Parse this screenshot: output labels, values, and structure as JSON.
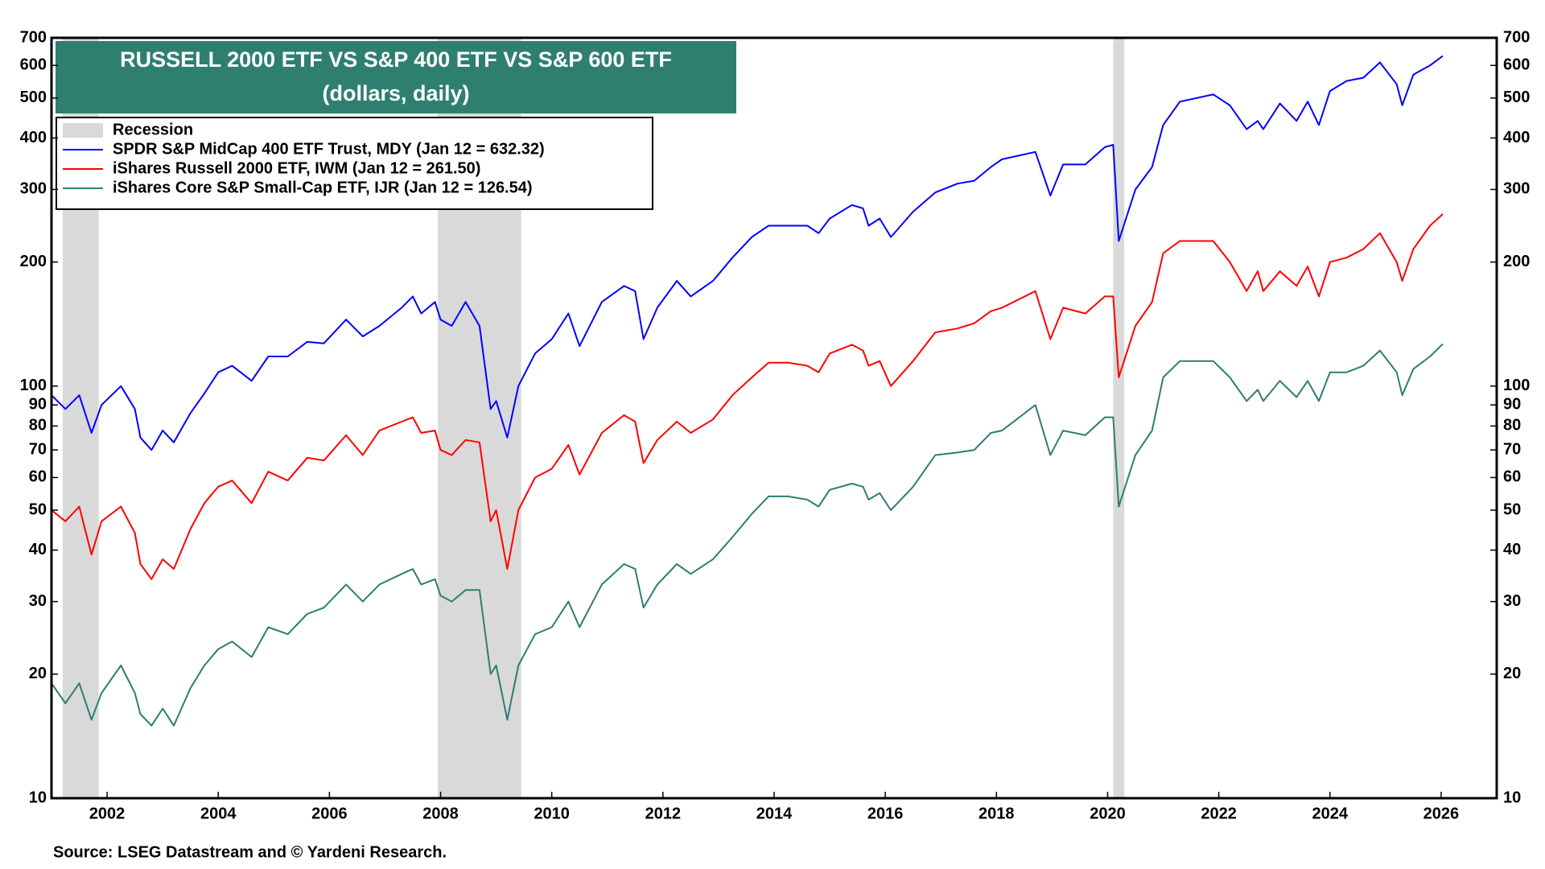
{
  "chart_data": {
    "type": "line",
    "title": "RUSSELL 2000 ETF VS S&P 400 ETF VS S&P 600 ETF",
    "subtitle": "(dollars, daily)",
    "source": "Source: LSEG Datastream and © Yardeni Research.",
    "log_scale": true,
    "grid": false,
    "xlim": [
      2001,
      2027
    ],
    "xticks": [
      2002,
      2004,
      2006,
      2008,
      2010,
      2012,
      2014,
      2016,
      2018,
      2020,
      2022,
      2024,
      2026
    ],
    "ylim": [
      10,
      700
    ],
    "yticks": [
      10,
      20,
      30,
      40,
      50,
      60,
      70,
      80,
      90,
      100,
      200,
      300,
      400,
      500,
      600,
      700
    ],
    "recession": {
      "name": "Recession",
      "color": "#d9d9d9",
      "periods": [
        [
          2001.2,
          2001.85
        ],
        [
          2007.95,
          2009.45
        ],
        [
          2020.1,
          2020.3
        ]
      ]
    },
    "x": [
      2001.0,
      2001.25,
      2001.5,
      2001.72,
      2001.9,
      2002.25,
      2002.5,
      2002.6,
      2002.8,
      2003.0,
      2003.2,
      2003.5,
      2003.75,
      2004.0,
      2004.25,
      2004.6,
      2004.9,
      2005.25,
      2005.6,
      2005.9,
      2006.3,
      2006.6,
      2006.9,
      2007.3,
      2007.5,
      2007.65,
      2007.9,
      2008.0,
      2008.2,
      2008.45,
      2008.7,
      2008.9,
      2009.0,
      2009.2,
      2009.4,
      2009.7,
      2010.0,
      2010.3,
      2010.5,
      2010.9,
      2011.3,
      2011.5,
      2011.65,
      2011.9,
      2012.25,
      2012.5,
      2012.9,
      2013.25,
      2013.6,
      2013.9,
      2014.25,
      2014.6,
      2014.8,
      2015.0,
      2015.4,
      2015.6,
      2015.7,
      2015.9,
      2016.1,
      2016.5,
      2016.9,
      2017.3,
      2017.6,
      2017.9,
      2018.1,
      2018.7,
      2018.97,
      2019.2,
      2019.6,
      2019.95,
      2020.1,
      2020.2,
      2020.5,
      2020.8,
      2021.0,
      2021.3,
      2021.9,
      2022.2,
      2022.5,
      2022.7,
      2022.8,
      2023.1,
      2023.4,
      2023.6,
      2023.8,
      2024.0,
      2024.3,
      2024.6,
      2024.9,
      2025.2,
      2025.3,
      2025.5,
      2025.8,
      2026.03
    ],
    "series": [
      {
        "name": "SPDR S&P MidCap 400 ETF Trust, MDY (Jan 12 = 632.32)",
        "color": "#0000ff",
        "values": [
          95,
          88,
          95,
          77,
          90,
          100,
          88,
          75,
          70,
          78,
          73,
          86,
          96,
          108,
          112,
          103,
          118,
          118,
          128,
          127,
          145,
          132,
          140,
          155,
          165,
          150,
          160,
          145,
          140,
          160,
          140,
          88,
          92,
          75,
          100,
          120,
          130,
          150,
          125,
          160,
          175,
          170,
          130,
          155,
          180,
          165,
          180,
          205,
          230,
          245,
          245,
          245,
          235,
          255,
          275,
          270,
          245,
          255,
          230,
          265,
          295,
          310,
          315,
          340,
          355,
          370,
          290,
          345,
          345,
          380,
          385,
          225,
          300,
          340,
          430,
          490,
          510,
          480,
          420,
          440,
          420,
          485,
          440,
          490,
          430,
          520,
          550,
          560,
          610,
          540,
          480,
          570,
          600,
          632.32
        ]
      },
      {
        "name": "iShares Russell 2000 ETF, IWM (Jan 12 = 261.50)",
        "color": "#ff0000",
        "values": [
          50,
          47,
          51,
          39,
          47,
          51,
          44,
          37,
          34,
          38,
          36,
          45,
          52,
          57,
          59,
          52,
          62,
          59,
          67,
          66,
          76,
          68,
          78,
          82,
          84,
          77,
          78,
          70,
          68,
          74,
          73,
          47,
          50,
          36,
          50,
          60,
          63,
          72,
          61,
          77,
          85,
          82,
          65,
          74,
          82,
          77,
          83,
          95,
          105,
          114,
          114,
          112,
          108,
          120,
          126,
          122,
          112,
          115,
          100,
          115,
          135,
          138,
          142,
          152,
          155,
          170,
          130,
          155,
          150,
          165,
          165,
          105,
          140,
          160,
          210,
          225,
          225,
          200,
          170,
          190,
          170,
          190,
          175,
          195,
          165,
          200,
          205,
          215,
          235,
          200,
          180,
          215,
          245,
          261.5
        ]
      },
      {
        "name": "iShares Core S&P Small-Cap ETF, IJR (Jan 12 = 126.54)",
        "color": "#2e7d73",
        "values": [
          19,
          17,
          19,
          15.5,
          18,
          21,
          18,
          16,
          15,
          16.5,
          15,
          18.5,
          21,
          23,
          24,
          22,
          26,
          25,
          28,
          29,
          33,
          30,
          33,
          35,
          36,
          33,
          34,
          31,
          30,
          32,
          32,
          20,
          21,
          15.5,
          21,
          25,
          26,
          30,
          26,
          33,
          37,
          36,
          29,
          33,
          37,
          35,
          38,
          43,
          49,
          54,
          54,
          53,
          51,
          56,
          58,
          57,
          53,
          55,
          50,
          57,
          68,
          69,
          70,
          77,
          78,
          90,
          68,
          78,
          76,
          84,
          84,
          51,
          68,
          78,
          105,
          115,
          115,
          105,
          92,
          98,
          92,
          103,
          94,
          103,
          92,
          108,
          108,
          112,
          122,
          108,
          95,
          110,
          118,
          126.54
        ]
      }
    ]
  }
}
